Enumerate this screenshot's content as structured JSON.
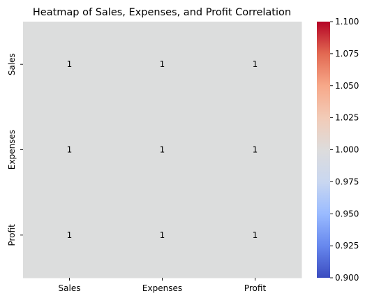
{
  "chart_data": {
    "type": "heatmap",
    "title": "Heatmap of Sales, Expenses, and Profit Correlation",
    "xlabel": "",
    "ylabel": "",
    "x_categories": [
      "Sales",
      "Expenses",
      "Profit"
    ],
    "y_categories": [
      "Sales",
      "Expenses",
      "Profit"
    ],
    "values": [
      [
        1,
        1,
        1
      ],
      [
        1,
        1,
        1
      ],
      [
        1,
        1,
        1
      ]
    ],
    "annotations": [
      [
        "1",
        "1",
        "1"
      ],
      [
        "1",
        "1",
        "1"
      ],
      [
        "1",
        "1",
        "1"
      ]
    ],
    "colormap": "coolwarm",
    "cell_color": "#dcdddd",
    "colorbar": {
      "range": [
        0.9,
        1.1
      ],
      "ticks": [
        "0.900",
        "0.925",
        "0.950",
        "0.975",
        "1.000",
        "1.025",
        "1.050",
        "1.075",
        "1.100"
      ],
      "stops": [
        "#3b4cc0",
        "#6788ee",
        "#9abbff",
        "#c9d7f0",
        "#dddcdc",
        "#f2cbb7",
        "#f7a889",
        "#e26952",
        "#b40426"
      ]
    },
    "grid": false,
    "legend": "right"
  }
}
